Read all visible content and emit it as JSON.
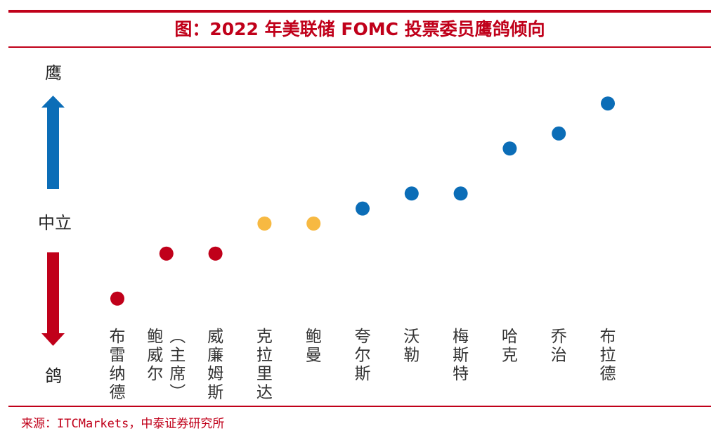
{
  "title": "图：2022 年美联储 FOMC 投票委员鹰鸽倾向",
  "source": "来源：ITCMarkets，中泰证券研究所",
  "colors": {
    "accent_red": "#c0001a",
    "hawk_blue": "#0b6db7",
    "neutral_yellow": "#f7b942",
    "dove_red": "#c0001a",
    "neutral_line_end": "#bcdcf0"
  },
  "chart_data": {
    "type": "scatter",
    "title": "图：2022 年美联储 FOMC 投票委员鹰鸽倾向",
    "y_axis": {
      "top_label": "鹰",
      "middle_label": "中立",
      "bottom_label": "鸽",
      "range": [
        -3,
        4
      ]
    },
    "neutral_line": {
      "y": 0,
      "style": "dashed",
      "color_from": "#c0001a",
      "color_to": "#bcdcf0"
    },
    "categories": [
      "布雷纳德",
      "鲍威尔（主席）",
      "威廉姆斯",
      "克拉里达",
      "鲍曼",
      "夸尔斯",
      "沃勒",
      "梅斯特",
      "哈克",
      "乔治",
      "布拉德"
    ],
    "category_label_columns": [
      [
        "布雷纳德"
      ],
      [
        "鲍威尔",
        "（主席）"
      ],
      [
        "威廉姆斯"
      ],
      [
        "克拉里达"
      ],
      [
        "鲍曼"
      ],
      [
        "夸尔斯"
      ],
      [
        "沃勒"
      ],
      [
        "梅斯特"
      ],
      [
        "哈克"
      ],
      [
        "乔治"
      ],
      [
        "布拉德"
      ]
    ],
    "values": [
      -2.5,
      -1,
      -1,
      0,
      0,
      0.5,
      1,
      1,
      2.5,
      3,
      4
    ],
    "point_colors": [
      "#c0001a",
      "#c0001a",
      "#c0001a",
      "#f7b942",
      "#f7b942",
      "#0b6db7",
      "#0b6db7",
      "#0b6db7",
      "#0b6db7",
      "#0b6db7",
      "#0b6db7"
    ],
    "legend": "none",
    "grid": false
  }
}
